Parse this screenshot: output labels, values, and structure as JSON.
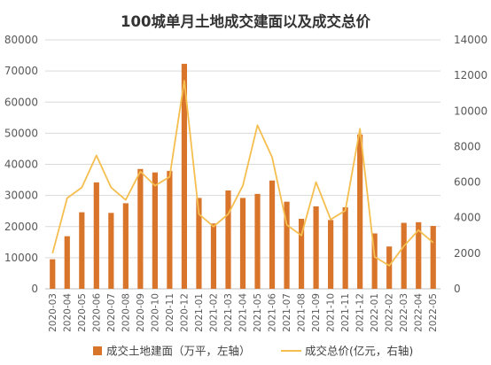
{
  "chart_data": {
    "type": "bar",
    "title": "100城单月土地成交建面以及成交总价",
    "categories": [
      "2020-03",
      "2020-04",
      "2020-05",
      "2020-06",
      "2020-07",
      "2020-08",
      "2020-09",
      "2020-10",
      "2020-11",
      "2020-12",
      "2021-01",
      "2021-02",
      "2021-03",
      "2021-04",
      "2021-05",
      "2021-06",
      "2021-07",
      "2021-08",
      "2021-09",
      "2021-10",
      "2021-11",
      "2021-12",
      "2022-01",
      "2022-02",
      "2022-03",
      "2022-04",
      "2022-05"
    ],
    "left_axis": {
      "ylim": [
        0,
        80000
      ],
      "ticks": [
        "0",
        "10000",
        "20000",
        "30000",
        "40000",
        "50000",
        "60000",
        "70000",
        "80000"
      ]
    },
    "right_axis": {
      "ylim": [
        0,
        14000
      ],
      "ticks": [
        "0",
        "2000",
        "4000",
        "6000",
        "8000",
        "10000",
        "12000",
        "14000"
      ]
    },
    "gridlines": true,
    "legend_position": "bottom",
    "series": [
      {
        "name": "成交土地建面（万平，左轴）",
        "type": "bar",
        "axis": "left",
        "color": "#D9752B",
        "values": [
          9500,
          16900,
          24600,
          34200,
          24400,
          27500,
          38500,
          37400,
          37900,
          72300,
          29200,
          21000,
          31600,
          29200,
          30500,
          34800,
          28000,
          22500,
          26500,
          22100,
          26200,
          49600,
          17800,
          13600,
          21200,
          21400,
          20200
        ]
      },
      {
        "name": "成交总价(亿元，右轴)",
        "type": "line",
        "axis": "right",
        "color": "#F5BE4F",
        "values": [
          2000,
          5100,
          5700,
          7500,
          5700,
          5000,
          6600,
          5800,
          6300,
          11700,
          4200,
          3500,
          4200,
          5800,
          9200,
          7400,
          3600,
          3000,
          6000,
          3900,
          4400,
          9000,
          1800,
          1300,
          2400,
          3300,
          2600
        ]
      }
    ]
  }
}
